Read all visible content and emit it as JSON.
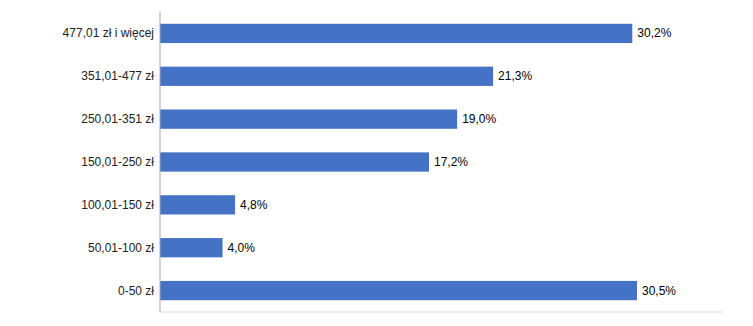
{
  "chart_data": {
    "type": "bar",
    "orientation": "horizontal",
    "categories": [
      "0-50 zł",
      "50,01-100 zł",
      "100,01-150 zł",
      "150,01-250 zł",
      "250,01-351 zł",
      "351,01-477 zł",
      "477,01 zł i więcej"
    ],
    "values": [
      30.5,
      4.0,
      4.8,
      17.2,
      19.0,
      21.3,
      30.2
    ],
    "value_labels": [
      "30,5%",
      "4,0%",
      "4,8%",
      "17,2%",
      "19,0%",
      "21,3%",
      "30,2%"
    ],
    "color": "#4472C4",
    "xlim": [
      0,
      36
    ],
    "data_labels": true,
    "tick_labels": "y",
    "grid": false
  }
}
